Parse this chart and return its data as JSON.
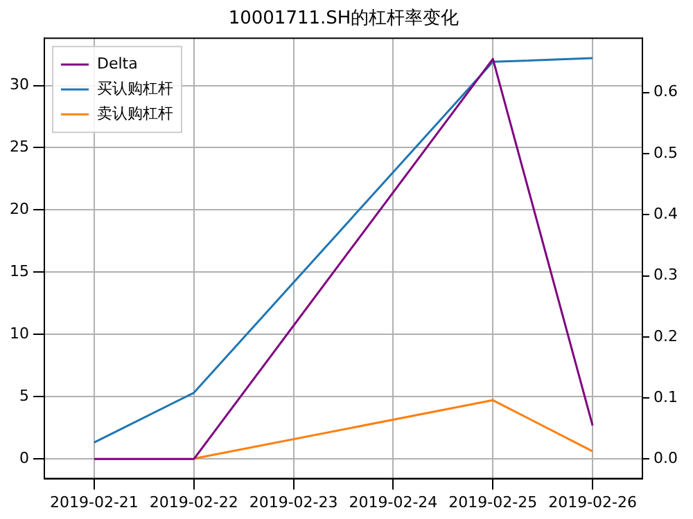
{
  "chart_data": {
    "type": "line",
    "title": "10001711.SH的杠杆率变化",
    "categories": [
      "2019-02-21",
      "2019-02-22",
      "2019-02-23",
      "2019-02-24",
      "2019-02-25",
      "2019-02-26"
    ],
    "series": [
      {
        "name": "Delta",
        "color": "#800080",
        "axis": "y2",
        "values": [
          0,
          0,
          null,
          null,
          0.655,
          0.055
        ]
      },
      {
        "name": "买认购杠杆",
        "color": "#1f77b4",
        "values": [
          1.3,
          5.3,
          null,
          null,
          31.9,
          32.2
        ]
      },
      {
        "name": "卖认购杠杆",
        "color": "#ff7f0e",
        "values": [
          null,
          0,
          null,
          null,
          4.7,
          0.6
        ]
      }
    ],
    "ylim": [
      -1.6,
      33.8
    ],
    "yticks": [
      0,
      5,
      10,
      15,
      20,
      25,
      30
    ],
    "y2lim": [
      -0.032,
      0.689
    ],
    "y2ticks": [
      {
        "value": 0,
        "label": "0.0"
      },
      {
        "value": 0.1,
        "label": "0.1"
      },
      {
        "value": 0.2,
        "label": "0.2"
      },
      {
        "value": 0.3,
        "label": "0.3"
      },
      {
        "value": 0.4,
        "label": "0.4"
      },
      {
        "value": 0.5,
        "label": "0.5"
      },
      {
        "value": 0.6,
        "label": "0.6"
      }
    ],
    "grid": true,
    "legend": "top left",
    "marker": "none",
    "line_style": "solid"
  }
}
